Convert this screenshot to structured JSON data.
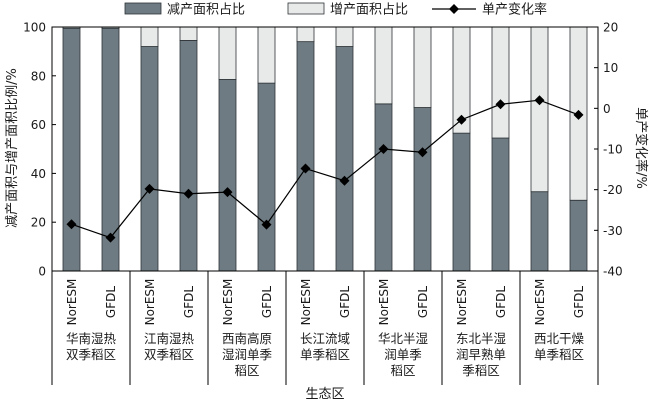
{
  "chart_data": {
    "type": "bar",
    "stacked": true,
    "legend": {
      "placement": "top",
      "items": [
        {
          "name": "减产面积占比",
          "swatch": "bar",
          "color": "#6e7b82"
        },
        {
          "name": "增产面积占比",
          "swatch": "bar",
          "color": "#e8eaea"
        },
        {
          "name": "单产变化率",
          "swatch": "line-diamond",
          "color": "#000000"
        }
      ]
    },
    "ylabel_left": "减产面积与增产面积比例/%",
    "ylabel_right": "单产变化率/%",
    "xlabel": "生态区",
    "ylim_left": [
      0,
      100
    ],
    "ylim_right": [
      -40,
      20
    ],
    "yticks_left": [
      "0",
      "20",
      "40",
      "60",
      "80",
      "100"
    ],
    "yticks_right": [
      "-40",
      "-30",
      "-20",
      "-10",
      "0",
      "10",
      "20"
    ],
    "categories": [
      "NorESM",
      "GFDL",
      "NorESM",
      "GFDL",
      "NorESM",
      "GFDL",
      "NorESM",
      "GFDL",
      "NorESM",
      "GFDL",
      "NorESM",
      "GFDL",
      "NorESM",
      "GFDL"
    ],
    "groups": [
      {
        "label": [
          "华南湿热",
          "双季稻区"
        ]
      },
      {
        "label": [
          "江南湿热",
          "双季稻区"
        ]
      },
      {
        "label": [
          "西南高原",
          "湿润单季",
          "稻区"
        ]
      },
      {
        "label": [
          "长江流域",
          "单季稻区"
        ]
      },
      {
        "label": [
          "华北半湿",
          "润单季",
          "稻区"
        ]
      },
      {
        "label": [
          "东北半湿",
          "润早熟单",
          "季稻区"
        ]
      },
      {
        "label": [
          "西北干燥",
          "单季稻区"
        ]
      }
    ],
    "series": [
      {
        "name": "减产面积占比",
        "axis": "left",
        "values": [
          99.5,
          99.5,
          92,
          94.5,
          78.5,
          77,
          94,
          92,
          68.5,
          67,
          56.5,
          54.5,
          32.5,
          29
        ]
      },
      {
        "name": "增产面积占比",
        "axis": "left",
        "values": [
          0.5,
          0.5,
          8,
          5.5,
          21.5,
          23,
          6,
          8,
          31.5,
          33,
          43.5,
          45.5,
          67.5,
          71
        ]
      },
      {
        "name": "单产变化率",
        "axis": "right",
        "type": "line",
        "values": [
          -28.5,
          -31.8,
          -19.8,
          -21,
          -20.6,
          -28.6,
          -14.8,
          -17.8,
          -10,
          -10.8,
          -2.8,
          1,
          2,
          -1.6
        ]
      }
    ],
    "colors": {
      "decrease": "#6e7b82",
      "increase": "#e8eaea",
      "line": "#000000"
    }
  }
}
